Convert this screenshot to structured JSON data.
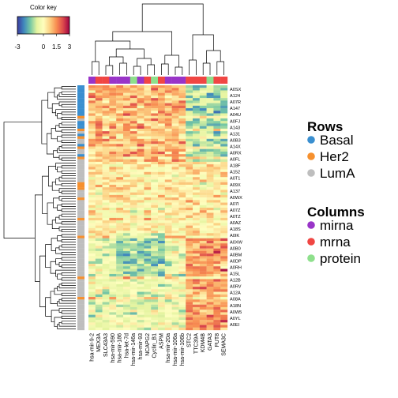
{
  "chart_data": {
    "type": "heatmap",
    "title": "",
    "color_key": {
      "title": "Color key",
      "tick_labels": [
        "-3",
        "0",
        "1.5",
        "3"
      ],
      "range": [
        -3,
        3
      ],
      "colors": [
        "#3b3a9e",
        "#3f88bd",
        "#77c8a4",
        "#e5f4a0",
        "#fefebe",
        "#fcd082",
        "#f88d51",
        "#dc4a4c",
        "#9e0142"
      ]
    },
    "columns": [
      "hsa-mir-9-2",
      "MEX3A",
      "SLC43A3",
      "hsa-mir-590",
      "hsa-mir-186",
      "hsa-let-7d",
      "hsa-mir-146a",
      "hsa-mir-93",
      "NCAPG2",
      "Cyclin_B1",
      "ASPM",
      "hsa-mir-20a",
      "hsa-mir-106a",
      "hsa-mir-106b",
      "STC2",
      "TTC39A",
      "KDM4B",
      "GATA3",
      "FUT8",
      "SEMA3C"
    ],
    "column_types": [
      "mirna",
      "mrna",
      "mrna",
      "mirna",
      "mirna",
      "mirna",
      "protein",
      "mirna",
      "mrna",
      "protein",
      "mrna",
      "mirna",
      "mirna",
      "mirna",
      "mrna",
      "mrna",
      "mrna",
      "protein",
      "mrna",
      "mrna"
    ],
    "row_labels": [
      "A0SX",
      "A124",
      "A07R",
      "A147",
      "A04U",
      "A0FJ",
      "A143",
      "A131",
      "A0B3",
      "A14X",
      "A0RX",
      "A0FL",
      "A18F",
      "A152",
      "A0T1",
      "A09X",
      "A137",
      "A0WX",
      "A07I",
      "A07Z",
      "A0TZ",
      "A0AZ",
      "A18S",
      "A0IK",
      "A0XW",
      "A0B0",
      "A0BM",
      "A0DP",
      "A0RH",
      "A15L",
      "A12B",
      "A0RV",
      "A12A",
      "A08A",
      "A18N",
      "A0W5",
      "A0YL",
      "A0EI"
    ],
    "row_groups": {
      "Basal": [
        [
          0,
          12
        ],
        [
          14,
          17
        ],
        [
          19,
          20
        ],
        [
          23,
          24
        ],
        [
          27,
          28
        ]
      ],
      "Her2": [
        [
          12,
          13
        ],
        [
          17,
          18
        ],
        [
          20,
          21
        ],
        [
          24,
          25
        ],
        [
          28,
          29
        ],
        [
          38,
          41
        ],
        [
          44,
          45
        ],
        [
          52,
          53
        ],
        [
          59,
          60
        ],
        [
          75,
          76
        ],
        [
          83,
          84
        ]
      ],
      "LumA": [
        [
          13,
          14
        ],
        [
          18,
          19
        ],
        [
          21,
          23
        ],
        [
          25,
          27
        ],
        [
          29,
          38
        ],
        [
          41,
          44
        ],
        [
          45,
          52
        ],
        [
          53,
          59
        ],
        [
          60,
          75
        ],
        [
          76,
          83
        ],
        [
          84,
          96
        ]
      ]
    },
    "n_rows": 96,
    "legend": {
      "rows_title": "Rows",
      "rows": [
        {
          "name": "Basal",
          "color": "#3a8fd0"
        },
        {
          "name": "Her2",
          "color": "#f6902e"
        },
        {
          "name": "LumA",
          "color": "#bebebe"
        }
      ],
      "columns_title": "Columns",
      "columns": [
        {
          "name": "mirna",
          "color": "#9934c8"
        },
        {
          "name": "mrna",
          "color": "#f04643"
        },
        {
          "name": "protein",
          "color": "#8ee08c"
        }
      ]
    }
  }
}
